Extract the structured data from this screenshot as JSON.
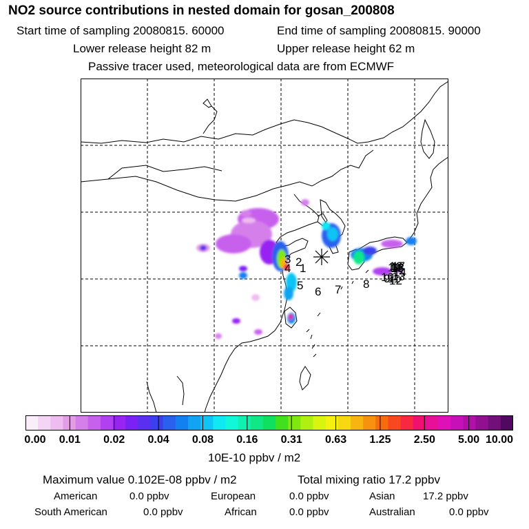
{
  "title": "NO2 source contributions in nested domain for gosan_200808",
  "header": {
    "start_label": "Start time of sampling 20080815. 60000",
    "end_label": "End time of sampling 20080815. 90000",
    "lower_release": "Lower release height   82 m",
    "upper_release": "Upper release height   62 m",
    "tracer_note": "Passive tracer used, meteorological data are from ECMWF"
  },
  "map": {
    "receptor_marker": "asterisk-marker",
    "source_labels": [
      "1",
      "2",
      "3",
      "4",
      "5",
      "6",
      "7",
      "8",
      "9",
      "10",
      "11",
      "12",
      "13",
      "14",
      "15",
      "16",
      "17",
      "18",
      "19"
    ]
  },
  "colorbar": {
    "colors": [
      "#fbeefb",
      "#f5d5f5",
      "#eebcee",
      "#e29ee2",
      "#d580ea",
      "#c860ee",
      "#b040f0",
      "#9824f2",
      "#7a22f4",
      "#5a30f0",
      "#3a40ee",
      "#2a60ee",
      "#1280f0",
      "#10a4f2",
      "#10c4f4",
      "#10e8f4",
      "#10f8d8",
      "#10f0b0",
      "#10e888",
      "#10e060",
      "#40e020",
      "#80e810",
      "#b0f010",
      "#d8f410",
      "#f4f010",
      "#f8d810",
      "#f8b410",
      "#f89010",
      "#f86c10",
      "#f84820",
      "#f82840",
      "#f01070",
      "#e81098",
      "#e010b8",
      "#c810b8",
      "#b010a8",
      "#901090",
      "#701078",
      "#500860"
    ],
    "tick_labels": [
      "0.00",
      "0.01",
      "0.02",
      "0.04",
      "0.08",
      "0.16",
      "0.31",
      "0.63",
      "1.25",
      "2.50",
      "5.00",
      "10.00"
    ],
    "units": "10E-10 ppbv / m2"
  },
  "stats": {
    "maximum_value": "Maximum value  0.102E-08 ppbv / m2",
    "total_mixing": "Total mixing ratio      17.2 ppbv"
  },
  "regions": {
    "american": {
      "label": "American",
      "value": "0.0 ppbv"
    },
    "european": {
      "label": "European",
      "value": "0.0 ppbv"
    },
    "asian": {
      "label": "Asian",
      "value": "17.2 ppbv"
    },
    "south_american": {
      "label": "South American",
      "value": "0.0 ppbv"
    },
    "african": {
      "label": "African",
      "value": "0.0 ppbv"
    },
    "australian": {
      "label": "Australian",
      "value": "0.0 ppbv"
    }
  }
}
